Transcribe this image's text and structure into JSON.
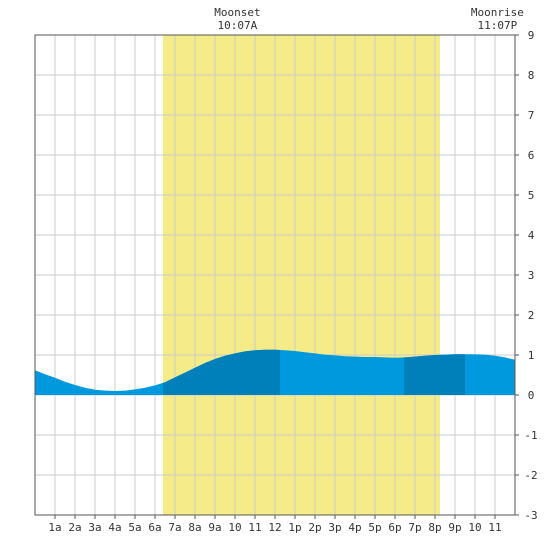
{
  "chart_data": {
    "type": "area",
    "x_hours": [
      0,
      0.5,
      1,
      1.5,
      2,
      2.5,
      3,
      3.5,
      4,
      4.5,
      5,
      5.5,
      6,
      6.5,
      7,
      7.5,
      8,
      8.5,
      9,
      9.5,
      10,
      10.5,
      11,
      11.5,
      12,
      12.5,
      13,
      13.5,
      14,
      14.5,
      15,
      15.5,
      16,
      16.5,
      17,
      17.5,
      18,
      18.5,
      19,
      19.5,
      20,
      20.5,
      21,
      21.5,
      22,
      22.5,
      23,
      23.5,
      24
    ],
    "values": [
      0.62,
      0.52,
      0.43,
      0.33,
      0.25,
      0.18,
      0.13,
      0.11,
      0.1,
      0.11,
      0.14,
      0.18,
      0.24,
      0.32,
      0.44,
      0.56,
      0.68,
      0.8,
      0.9,
      0.98,
      1.04,
      1.09,
      1.12,
      1.13,
      1.13,
      1.12,
      1.1,
      1.07,
      1.04,
      1.01,
      0.99,
      0.97,
      0.96,
      0.95,
      0.95,
      0.94,
      0.93,
      0.94,
      0.96,
      0.98,
      1.0,
      1.01,
      1.02,
      1.02,
      1.02,
      1.01,
      0.98,
      0.94,
      0.88
    ],
    "ylim": [
      -3,
      9
    ],
    "xlim": [
      0,
      24
    ],
    "y_ticks": [
      "9",
      "8",
      "7",
      "6",
      "5",
      "4",
      "3",
      "2",
      "1",
      "0",
      "-1",
      "-2",
      "-3"
    ],
    "x_tick_labels": [
      "1a",
      "2a",
      "3a",
      "4a",
      "5a",
      "6a",
      "7a",
      "8a",
      "9a",
      "10",
      "11",
      "12",
      "1p",
      "2p",
      "3p",
      "4p",
      "5p",
      "6p",
      "7p",
      "8p",
      "9p",
      "10",
      "11"
    ],
    "daylight": {
      "start_hour": 6.4,
      "end_hour": 20.25
    },
    "dark_bands": [
      {
        "start_hour": 6.4,
        "end_hour": 12.25
      },
      {
        "start_hour": 18.45,
        "end_hour": 21.5
      }
    ],
    "annotations": [
      {
        "name": "moonset",
        "label": "Moonset",
        "time": "10:07A",
        "hour": 10.12
      },
      {
        "name": "moonrise",
        "label": "Moonrise",
        "time": "11:07P",
        "hour": 23.12
      }
    ],
    "grid": true,
    "colors": {
      "water": "#0099dd",
      "water_dark": "#0080bb",
      "daylight": "#f5ec89",
      "grid": "#cccccc",
      "frame": "#555555"
    }
  }
}
